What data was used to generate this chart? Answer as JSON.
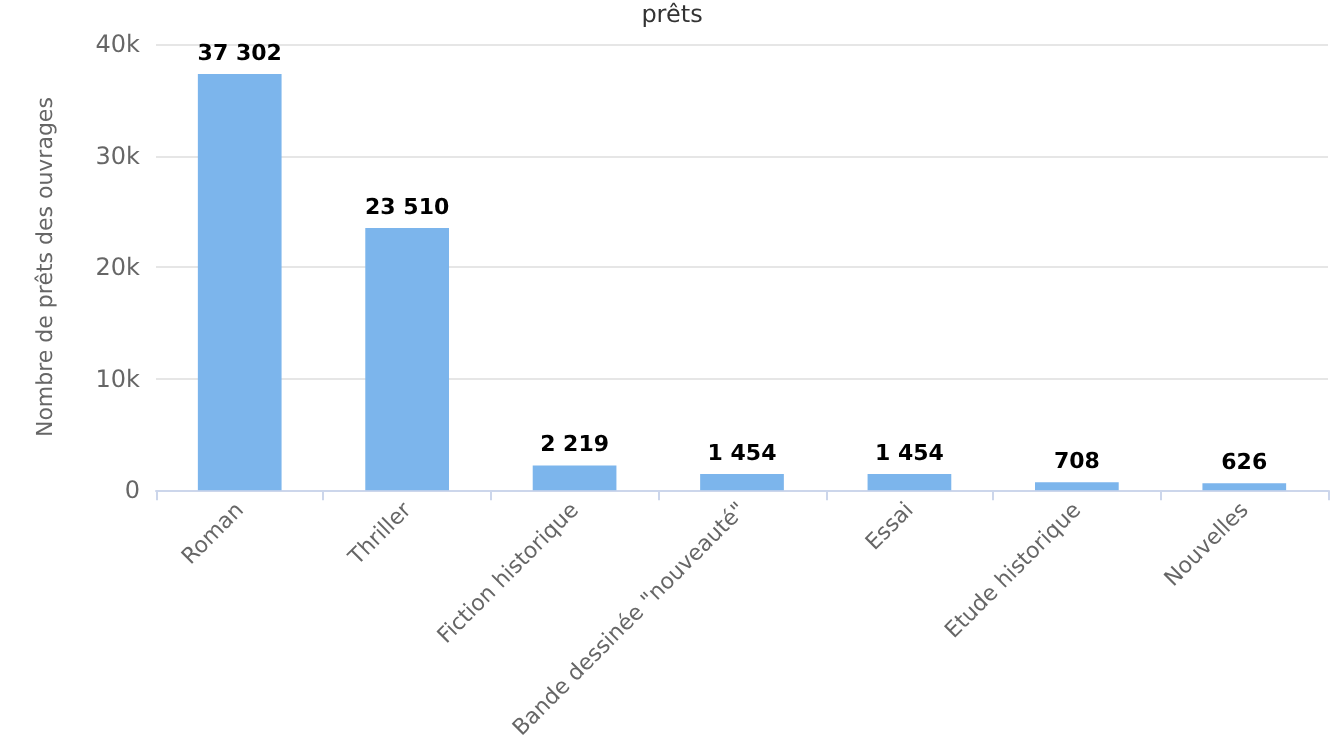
{
  "chart_data": {
    "type": "bar",
    "title": "prêts",
    "ylabel": "Nombre de prêts des ouvrages",
    "categories": [
      "Roman",
      "Thriller",
      "Fiction historique",
      "Bande dessinée \"nouveauté\"",
      "Essai",
      "Etude historique",
      "Nouvelles"
    ],
    "values": [
      37302,
      23510,
      2219,
      1454,
      1454,
      708,
      626
    ],
    "value_labels": [
      "37 302",
      "23 510",
      "2 219",
      "1 454",
      "1 454",
      "708",
      "626"
    ],
    "color": "#7cb5ec",
    "ylim": [
      0,
      40000
    ],
    "yticks": [
      {
        "value": 0,
        "label": "0"
      },
      {
        "value": 10000,
        "label": "10k"
      },
      {
        "value": 20000,
        "label": "20k"
      },
      {
        "value": 30000,
        "label": "30k"
      },
      {
        "value": 40000,
        "label": "40k"
      }
    ],
    "grid": "y"
  }
}
